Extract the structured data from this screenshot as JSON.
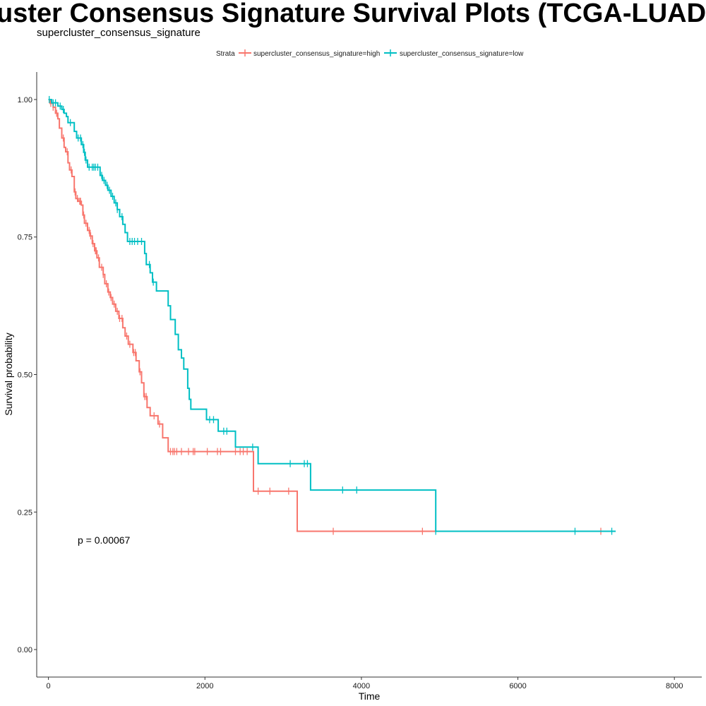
{
  "title": "uster Consensus Signature Survival Plots (TCGA-LUAD Deco",
  "subtitle": "supercluster_consensus_signature",
  "legend": {
    "title": "Strata",
    "items": [
      {
        "label": "supercluster_consensus_signature=high",
        "color": "#F8766D"
      },
      {
        "label": "supercluster_consensus_signature=low",
        "color": "#00BFC4"
      }
    ]
  },
  "p_value_text": "p = 0.00067",
  "chart_data": {
    "type": "line",
    "subtype": "kaplan-meier-step",
    "title": "uster Consensus Signature Survival Plots (TCGA-LUAD Deco",
    "subtitle": "supercluster_consensus_signature",
    "xlabel": "Time",
    "ylabel": "Survival probability",
    "xlim": [
      -150,
      8350
    ],
    "ylim": [
      -0.05,
      1.05
    ],
    "xticks": [
      0,
      2000,
      4000,
      6000,
      8000
    ],
    "xtick_labels": [
      "0",
      "2000",
      "4000",
      "6000",
      "8000"
    ],
    "yticks": [
      0,
      0.25,
      0.5,
      0.75,
      1.0
    ],
    "ytick_labels": [
      "0.00",
      "0.25",
      "0.50",
      "0.75",
      "1.00"
    ],
    "grid": false,
    "legend_position": "top",
    "annotation": "p = 0.00067",
    "series": [
      {
        "name": "supercluster_consensus_signature=high",
        "color": "#F8766D",
        "steps": [
          [
            0,
            1.0
          ],
          [
            20,
            0.993
          ],
          [
            60,
            0.986
          ],
          [
            90,
            0.975
          ],
          [
            120,
            0.965
          ],
          [
            140,
            0.948
          ],
          [
            170,
            0.93
          ],
          [
            200,
            0.913
          ],
          [
            220,
            0.905
          ],
          [
            250,
            0.885
          ],
          [
            270,
            0.872
          ],
          [
            300,
            0.86
          ],
          [
            330,
            0.832
          ],
          [
            350,
            0.82
          ],
          [
            380,
            0.815
          ],
          [
            420,
            0.808
          ],
          [
            440,
            0.79
          ],
          [
            460,
            0.775
          ],
          [
            500,
            0.762
          ],
          [
            530,
            0.752
          ],
          [
            560,
            0.738
          ],
          [
            590,
            0.725
          ],
          [
            620,
            0.712
          ],
          [
            650,
            0.695
          ],
          [
            700,
            0.682
          ],
          [
            720,
            0.665
          ],
          [
            760,
            0.65
          ],
          [
            790,
            0.64
          ],
          [
            820,
            0.628
          ],
          [
            860,
            0.615
          ],
          [
            900,
            0.602
          ],
          [
            950,
            0.585
          ],
          [
            980,
            0.57
          ],
          [
            1020,
            0.555
          ],
          [
            1080,
            0.54
          ],
          [
            1120,
            0.525
          ],
          [
            1160,
            0.505
          ],
          [
            1190,
            0.485
          ],
          [
            1220,
            0.46
          ],
          [
            1260,
            0.44
          ],
          [
            1300,
            0.425
          ],
          [
            1400,
            0.41
          ],
          [
            1460,
            0.385
          ],
          [
            1530,
            0.36
          ],
          [
            2620,
            0.288
          ],
          [
            3180,
            0.215
          ],
          [
            7060,
            0.215
          ]
        ],
        "censor_times": [
          30,
          60,
          105,
          190,
          240,
          290,
          340,
          370,
          400,
          410,
          450,
          480,
          520,
          540,
          570,
          600,
          610,
          640,
          680,
          700,
          740,
          770,
          800,
          840,
          880,
          910,
          940,
          1000,
          1040,
          1090,
          1110,
          1170,
          1230,
          1250,
          1350,
          1420,
          1560,
          1590,
          1610,
          1640,
          1700,
          1790,
          1850,
          1870,
          2030,
          2160,
          2200,
          2390,
          2450,
          2490,
          2540,
          2680,
          2830,
          3070,
          3640,
          4780,
          7060
        ]
      },
      {
        "name": "supercluster_consensus_signature=low",
        "color": "#00BFC4",
        "steps": [
          [
            0,
            1.0
          ],
          [
            40,
            0.994
          ],
          [
            120,
            0.988
          ],
          [
            170,
            0.982
          ],
          [
            200,
            0.975
          ],
          [
            230,
            0.969
          ],
          [
            250,
            0.958
          ],
          [
            330,
            0.942
          ],
          [
            360,
            0.93
          ],
          [
            420,
            0.918
          ],
          [
            450,
            0.904
          ],
          [
            470,
            0.89
          ],
          [
            500,
            0.877
          ],
          [
            660,
            0.862
          ],
          [
            690,
            0.853
          ],
          [
            730,
            0.844
          ],
          [
            760,
            0.835
          ],
          [
            800,
            0.824
          ],
          [
            840,
            0.812
          ],
          [
            880,
            0.8
          ],
          [
            910,
            0.787
          ],
          [
            950,
            0.773
          ],
          [
            980,
            0.758
          ],
          [
            1010,
            0.742
          ],
          [
            1230,
            0.72
          ],
          [
            1250,
            0.7
          ],
          [
            1300,
            0.685
          ],
          [
            1330,
            0.668
          ],
          [
            1380,
            0.652
          ],
          [
            1530,
            0.625
          ],
          [
            1560,
            0.6
          ],
          [
            1620,
            0.573
          ],
          [
            1660,
            0.545
          ],
          [
            1700,
            0.53
          ],
          [
            1730,
            0.51
          ],
          [
            1780,
            0.475
          ],
          [
            1800,
            0.455
          ],
          [
            1820,
            0.437
          ],
          [
            2020,
            0.418
          ],
          [
            2170,
            0.397
          ],
          [
            2390,
            0.368
          ],
          [
            2680,
            0.338
          ],
          [
            3350,
            0.29
          ],
          [
            4950,
            0.215
          ],
          [
            7250,
            0.215
          ]
        ],
        "censor_times": [
          10,
          60,
          90,
          150,
          190,
          280,
          380,
          410,
          440,
          460,
          480,
          520,
          560,
          580,
          600,
          630,
          680,
          710,
          750,
          780,
          820,
          860,
          880,
          940,
          1040,
          1070,
          1100,
          1140,
          1190,
          1290,
          1340,
          2060,
          2110,
          2240,
          2280,
          2610,
          3090,
          3270,
          3310,
          3760,
          3940,
          4950,
          6730,
          7200
        ]
      }
    ]
  }
}
